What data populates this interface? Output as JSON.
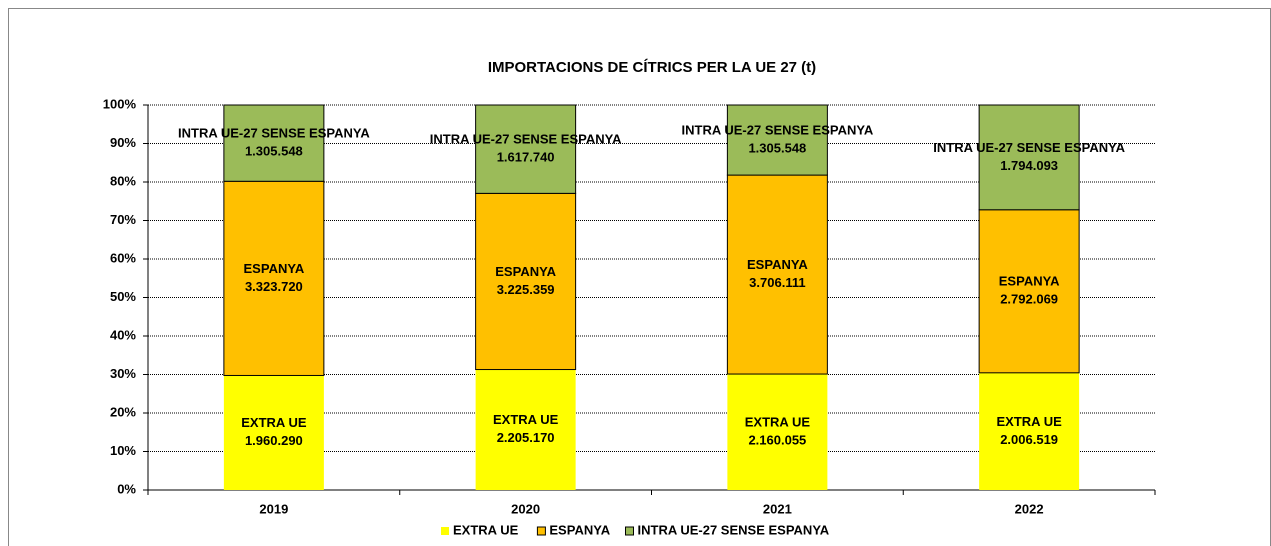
{
  "chart_data": {
    "type": "bar",
    "stacking": "percent",
    "title": "IMPORTACIONS DE CÍTRICS PER LA UE 27 (t)",
    "categories": [
      "2019",
      "2020",
      "2021",
      "2022"
    ],
    "series": [
      {
        "name": "EXTRA UE",
        "color": "#ffff00",
        "values": [
          1960290,
          2205170,
          2160055,
          2006519
        ],
        "value_labels": [
          "1.960.290",
          "2.205.170",
          "2.160.055",
          "2.006.519"
        ]
      },
      {
        "name": "ESPANYA",
        "color": "#ffc000",
        "values": [
          3323720,
          3225359,
          3706111,
          2792069
        ],
        "value_labels": [
          "3.323.720",
          "3.225.359",
          "3.706.111",
          "2.792.069"
        ]
      },
      {
        "name": "INTRA UE-27 SENSE ESPANYA",
        "color": "#9bbb59",
        "values": [
          1305548,
          1617740,
          1305548,
          1794093
        ],
        "value_labels": [
          "1.305.548",
          "1.617.740",
          "1.305.548",
          "1.794.093"
        ]
      }
    ],
    "ylim": [
      0,
      100
    ],
    "yticks": [
      {
        "value": 0,
        "label": "0%"
      },
      {
        "value": 10,
        "label": "10%"
      },
      {
        "value": 20,
        "label": "20%"
      },
      {
        "value": 30,
        "label": "30%"
      },
      {
        "value": 40,
        "label": "40%"
      },
      {
        "value": 50,
        "label": "50%"
      },
      {
        "value": 60,
        "label": "60%"
      },
      {
        "value": 70,
        "label": "70%"
      },
      {
        "value": 80,
        "label": "80%"
      },
      {
        "value": 90,
        "label": "90%"
      },
      {
        "value": 100,
        "label": "100%"
      }
    ],
    "grid": true,
    "legend": "bottom"
  }
}
